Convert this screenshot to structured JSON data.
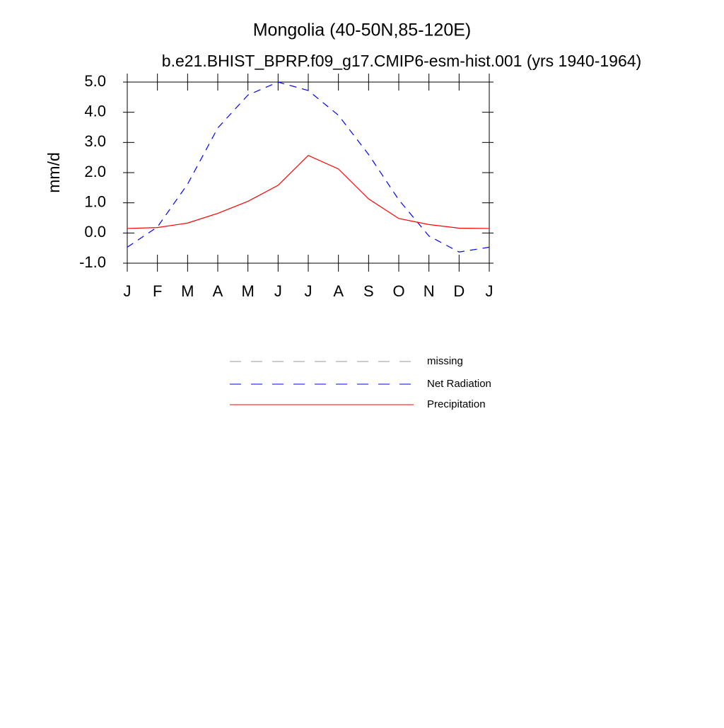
{
  "chart_data": {
    "type": "line",
    "title": "Mongolia (40-50N,85-120E)",
    "subtitle": "b.e21.BHIST_BPRP.f09_g17.CMIP6-esm-hist.001 (yrs 1940-1964)",
    "y_label": "mm/d",
    "categories": [
      "J",
      "F",
      "M",
      "A",
      "M",
      "J",
      "J",
      "A",
      "S",
      "O",
      "N",
      "D",
      "J"
    ],
    "series": [
      {
        "name": "missing",
        "color": "#999999",
        "dashed": true,
        "values": [
          null,
          null,
          null,
          null,
          null,
          null,
          null,
          null,
          null,
          null,
          null,
          null,
          null
        ]
      },
      {
        "name": "Net Radiation",
        "color": "#0000ff",
        "dashed": true,
        "values": [
          -0.47,
          0.2,
          1.62,
          3.48,
          4.57,
          5.0,
          4.72,
          3.9,
          2.6,
          1.1,
          -0.1,
          -0.63,
          -0.47
        ]
      },
      {
        "name": "Precipitation",
        "color": "#ff0000",
        "dashed": false,
        "values": [
          0.15,
          0.18,
          0.33,
          0.65,
          1.05,
          1.58,
          2.57,
          2.12,
          1.13,
          0.48,
          0.28,
          0.16,
          0.15
        ]
      }
    ],
    "ylim": [
      -1.0,
      5.0
    ],
    "yticks": [
      {
        "value": -1,
        "label": "-1.0"
      },
      {
        "value": 0,
        "label": "0.0"
      },
      {
        "value": 1,
        "label": "1.0"
      },
      {
        "value": 2,
        "label": "2.0"
      },
      {
        "value": 3,
        "label": "3.0"
      },
      {
        "value": 4,
        "label": "4.0"
      },
      {
        "value": 5,
        "label": "5.0"
      }
    ]
  }
}
